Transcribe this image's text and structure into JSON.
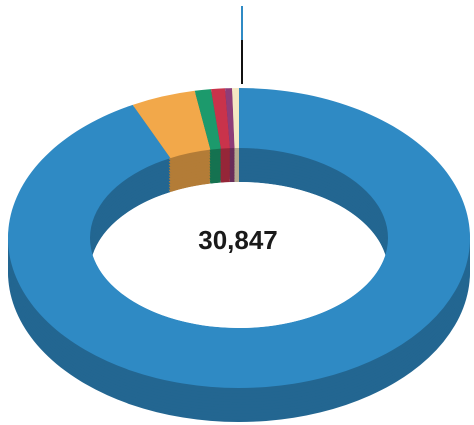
{
  "chart_data": {
    "type": "donut3d",
    "center_label": "30,847",
    "values": [
      28500,
      1400,
      350,
      300,
      150,
      147
    ],
    "colors": [
      "#2f8ac4",
      "#f2a84a",
      "#1c9a6c",
      "#c9334b",
      "#8e3d78",
      "#f4e7c3"
    ]
  }
}
